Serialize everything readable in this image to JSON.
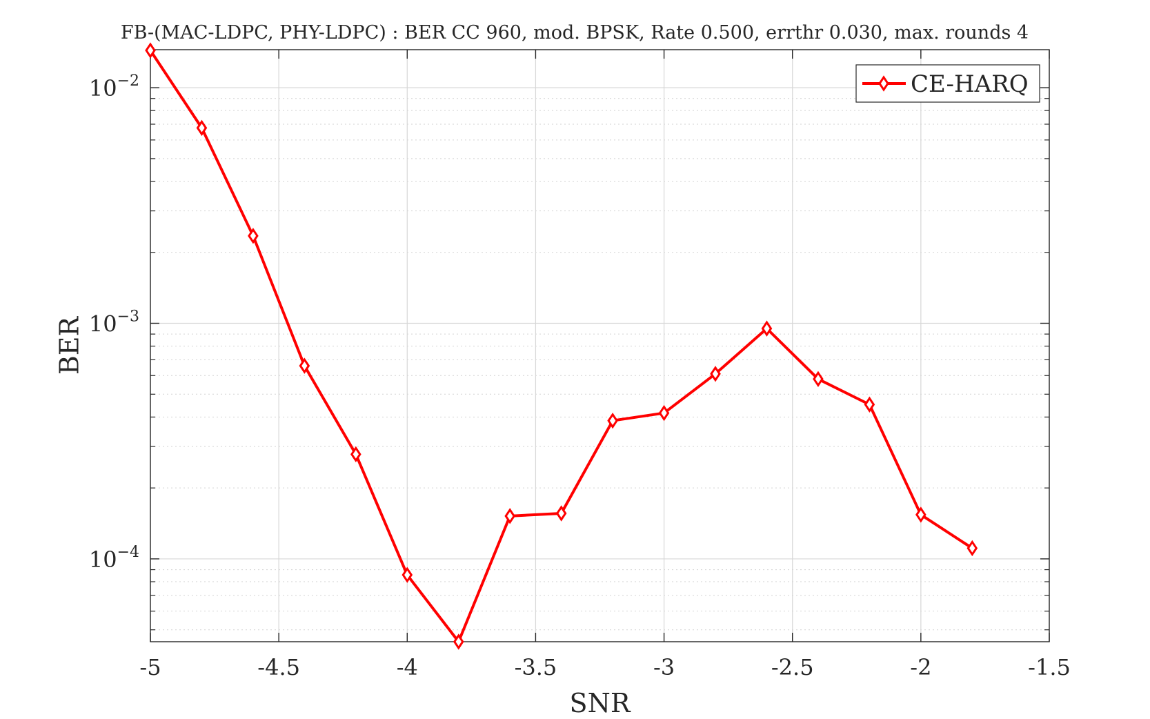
{
  "chart_data": {
    "type": "line",
    "title": "FB-(MAC-LDPC, PHY-LDPC) : BER CC 960, mod. BPSK, Rate 0.500, errthr 0.030, max. rounds 4",
    "xlabel": "SNR",
    "ylabel": "BER",
    "xlim": [
      -5,
      -1.5
    ],
    "ylim": [
      4.45e-05,
      0.0145
    ],
    "yscale": "log",
    "grid": true,
    "minor_grid": true,
    "legend_position": "top-right",
    "x_ticks": [
      "-5",
      "-4.5",
      "-4",
      "-3.5",
      "-3",
      "-2.5",
      "-2",
      "-1.5"
    ],
    "y_ticks": [
      {
        "base": "10",
        "exp": "−2",
        "value": 0.01
      },
      {
        "base": "10",
        "exp": "−3",
        "value": 0.001
      },
      {
        "base": "10",
        "exp": "−4",
        "value": 0.0001
      }
    ],
    "series": [
      {
        "name": "CE-HARQ",
        "color": "#ff0000",
        "marker": "diamond",
        "x": [
          -5.0,
          -4.8,
          -4.6,
          -4.4,
          -4.2,
          -4.0,
          -3.8,
          -3.6,
          -3.4,
          -3.2,
          -3.0,
          -2.8,
          -2.6,
          -2.4,
          -2.2,
          -2.0,
          -1.8
        ],
        "y": [
          0.0144,
          0.00675,
          0.00235,
          0.00066,
          0.000278,
          8.55e-05,
          4.45e-05,
          0.000152,
          0.000156,
          0.000386,
          0.000416,
          0.00061,
          0.00095,
          0.00058,
          0.000452,
          0.000154,
          0.000111
        ]
      }
    ]
  }
}
